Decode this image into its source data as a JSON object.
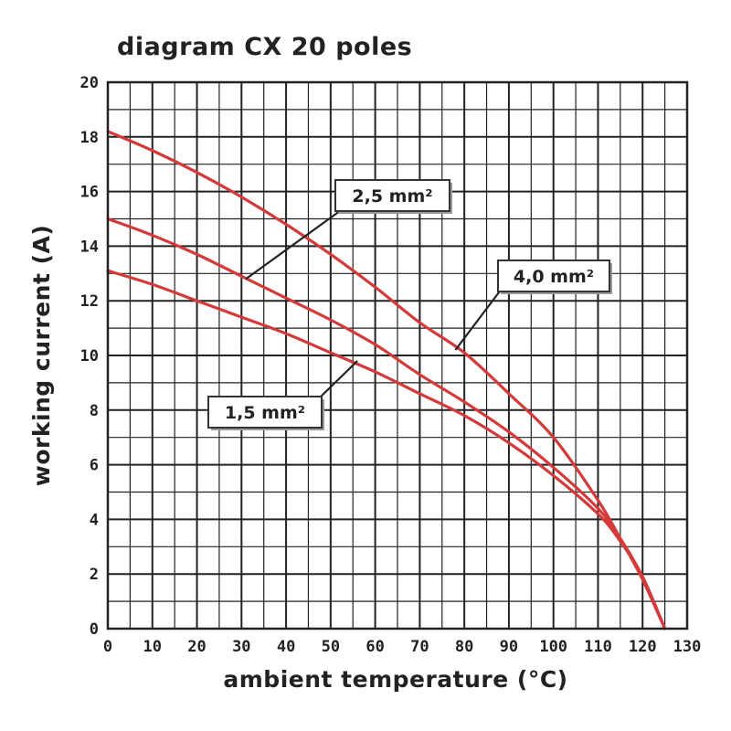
{
  "chart_data": {
    "type": "line",
    "title": "diagram CX 20 poles",
    "xlabel": "ambient temperature (°C)",
    "ylabel": "working current (A)",
    "xlim": [
      0,
      130
    ],
    "ylim": [
      0,
      20
    ],
    "x_ticks": [
      0,
      10,
      20,
      30,
      40,
      50,
      60,
      70,
      80,
      90,
      100,
      110,
      120,
      130
    ],
    "y_ticks": [
      0,
      2,
      4,
      6,
      8,
      10,
      12,
      14,
      16,
      18,
      20
    ],
    "grid": true,
    "minor_x_gridlines": true,
    "legend": "none",
    "colors": {
      "series": "#d43a3a",
      "series_light": "#e88080",
      "grid": "#222222",
      "callout_border": "#333333"
    },
    "series": [
      {
        "name": "4,0 mm²",
        "x": [
          0,
          10,
          20,
          30,
          40,
          50,
          60,
          70,
          80,
          90,
          100,
          110,
          115,
          120,
          125
        ],
        "y": [
          18.2,
          17.5,
          16.7,
          15.8,
          14.8,
          13.7,
          12.5,
          11.2,
          10.1,
          8.6,
          7.0,
          4.7,
          3.3,
          1.8,
          0
        ]
      },
      {
        "name": "2,5 mm²",
        "x": [
          0,
          10,
          20,
          30,
          40,
          50,
          60,
          70,
          80,
          90,
          100,
          110,
          115,
          120,
          125
        ],
        "y": [
          15.0,
          14.4,
          13.7,
          12.9,
          12.1,
          11.3,
          10.4,
          9.3,
          8.3,
          7.2,
          5.9,
          4.4,
          3.3,
          1.9,
          0
        ]
      },
      {
        "name": "1,5 mm²",
        "x": [
          0,
          10,
          20,
          30,
          40,
          50,
          60,
          70,
          80,
          90,
          100,
          110,
          115,
          120,
          125
        ],
        "y": [
          13.1,
          12.6,
          12.0,
          11.4,
          10.8,
          10.1,
          9.4,
          8.6,
          7.8,
          6.8,
          5.6,
          4.2,
          3.2,
          1.9,
          0
        ]
      }
    ],
    "annotations": [
      {
        "text": "2,5 mm²",
        "series": "2,5 mm²",
        "points_to": [
          31,
          12.8
        ]
      },
      {
        "text": "4,0 mm²",
        "series": "4,0 mm²",
        "points_to": [
          78,
          10.2
        ]
      },
      {
        "text": "1,5 mm²",
        "series": "1,5 mm²",
        "points_to": [
          56,
          9.8
        ]
      }
    ]
  }
}
